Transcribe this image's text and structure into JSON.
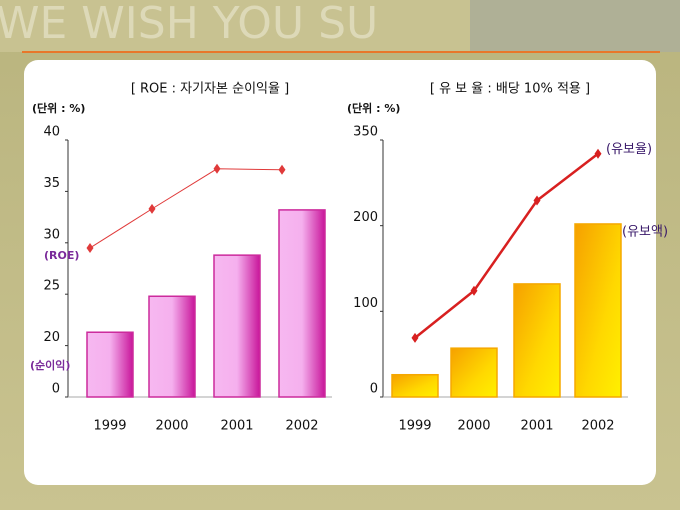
{
  "banner": "WE WISH YOU SU",
  "chart_data": [
    {
      "type": "combo",
      "title": "[ ROE : 자기자본 순이익율 ]",
      "unit_label": "(단위 : %)",
      "categories": [
        "1999",
        "2000",
        "2001",
        "2002"
      ],
      "series": [
        {
          "name": "(순이익)",
          "type": "bar",
          "color": "#cc2a9c",
          "values": [
            21.3,
            24.8,
            28.8,
            33.2
          ]
        },
        {
          "name": "(ROE)",
          "type": "line",
          "color": "#e03a3a",
          "values": [
            29.5,
            33.3,
            37.2,
            37.1
          ]
        }
      ],
      "ylim": [
        0,
        40
      ],
      "yticks": [
        0,
        20,
        25,
        30,
        35,
        40
      ],
      "legend": "axis"
    },
    {
      "type": "combo",
      "title": "[ 유 보 율 : 배당 10% 적용 ]",
      "unit_label": "(단위 : %)",
      "categories": [
        "1999",
        "2000",
        "2001",
        "2002"
      ],
      "series": [
        {
          "name": "(유보액)",
          "type": "bar",
          "color": "#f5a800",
          "values": [
            26,
            57,
            132,
            203
          ]
        },
        {
          "name": "(유보율)",
          "type": "line",
          "color": "#d82020",
          "values": [
            69,
            124,
            244,
            326
          ]
        }
      ],
      "ylim": [
        0,
        350
      ],
      "yticks": [
        0,
        100,
        200,
        350
      ],
      "legend": "end"
    }
  ]
}
